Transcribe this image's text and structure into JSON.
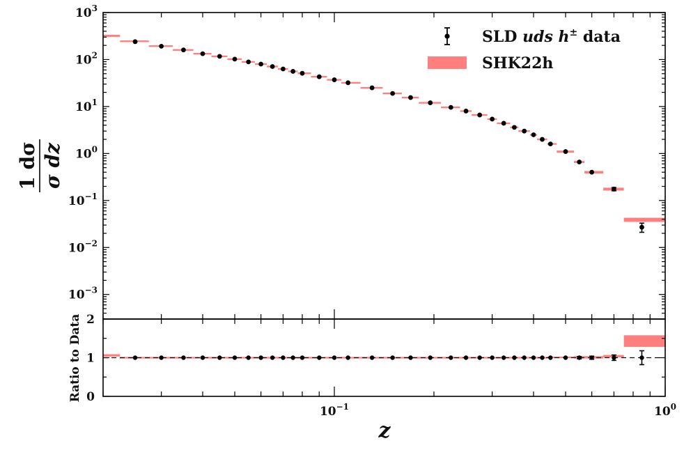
{
  "chart_data": [
    {
      "type": "scatter",
      "panel": "main",
      "ylabel_numerator": "1 dσ",
      "ylabel_denominator": "σ dz",
      "yscale": "log",
      "xscale": "log",
      "xlim": [
        0.02,
        1.0
      ],
      "ylim": [
        0.0003,
        1000
      ],
      "yticks": [
        {
          "base": "10",
          "exp": "3",
          "value": 1000
        },
        {
          "base": "10",
          "exp": "2",
          "value": 100
        },
        {
          "base": "10",
          "exp": "1",
          "value": 10
        },
        {
          "base": "10",
          "exp": "0",
          "value": 1
        },
        {
          "base": "10",
          "exp": "−1",
          "value": 0.1
        },
        {
          "base": "10",
          "exp": "−2",
          "value": 0.01
        },
        {
          "base": "10",
          "exp": "−3",
          "value": 0.001
        }
      ],
      "legend": {
        "placement": "top-right",
        "entries": [
          {
            "label_parts": [
              "SLD ",
              "uds",
              " h",
              "±",
              " data"
            ],
            "kind": "errorbar-point",
            "color": "#000000"
          },
          {
            "label": "SHK22h",
            "kind": "band",
            "color": "#ff7f7f"
          }
        ]
      },
      "series": [
        {
          "name": "SLD uds h± data",
          "x": [
            0.025,
            0.03,
            0.035,
            0.04,
            0.045,
            0.05,
            0.055,
            0.06,
            0.065,
            0.07,
            0.075,
            0.08,
            0.09,
            0.1,
            0.11,
            0.13,
            0.15,
            0.17,
            0.195,
            0.225,
            0.25,
            0.275,
            0.3,
            0.325,
            0.35,
            0.375,
            0.4,
            0.425,
            0.45,
            0.5,
            0.55,
            0.6,
            0.7,
            0.85
          ],
          "y": [
            240,
            192,
            160,
            133,
            117,
            102,
            89,
            80,
            71,
            63,
            56,
            51,
            43,
            37,
            32,
            25,
            19,
            15.5,
            12,
            9.6,
            8.0,
            6.6,
            5.4,
            4.4,
            3.6,
            3.0,
            2.5,
            2.0,
            1.6,
            1.1,
            0.66,
            0.4,
            0.175,
            0.027
          ],
          "yerr_rel": [
            0.03,
            0.02,
            0.02,
            0.02,
            0.02,
            0.02,
            0.02,
            0.02,
            0.02,
            0.02,
            0.02,
            0.02,
            0.02,
            0.02,
            0.02,
            0.02,
            0.02,
            0.02,
            0.02,
            0.02,
            0.02,
            0.02,
            0.02,
            0.02,
            0.02,
            0.02,
            0.02,
            0.02,
            0.03,
            0.03,
            0.04,
            0.05,
            0.08,
            0.22
          ]
        },
        {
          "name": "SHK22h",
          "x_lo": [
            0.02,
            0.0225,
            0.0275,
            0.0325,
            0.0375,
            0.0425,
            0.0475,
            0.0525,
            0.0575,
            0.0625,
            0.0675,
            0.0725,
            0.0775,
            0.085,
            0.095,
            0.105,
            0.12,
            0.14,
            0.16,
            0.18,
            0.21,
            0.24,
            0.26,
            0.29,
            0.31,
            0.34,
            0.36,
            0.39,
            0.41,
            0.44,
            0.47,
            0.53,
            0.57,
            0.65,
            0.75
          ],
          "x_hi": [
            0.0225,
            0.0275,
            0.0325,
            0.0375,
            0.0425,
            0.0475,
            0.0525,
            0.0575,
            0.0625,
            0.0675,
            0.0725,
            0.0775,
            0.085,
            0.095,
            0.105,
            0.12,
            0.14,
            0.16,
            0.18,
            0.21,
            0.24,
            0.26,
            0.29,
            0.31,
            0.34,
            0.36,
            0.39,
            0.41,
            0.44,
            0.47,
            0.53,
            0.57,
            0.65,
            0.75,
            1.0
          ],
          "y": [
            320,
            245,
            193,
            160,
            133,
            117,
            102,
            89,
            80,
            71,
            63,
            56,
            51,
            43,
            37,
            32,
            25,
            19,
            15.5,
            12,
            9.6,
            8.0,
            6.6,
            5.4,
            4.4,
            3.6,
            3.0,
            2.5,
            2.0,
            1.6,
            1.1,
            0.66,
            0.4,
            0.175,
            0.039
          ],
          "band_rel": [
            0.05,
            0.04,
            0.04,
            0.04,
            0.04,
            0.04,
            0.04,
            0.04,
            0.04,
            0.04,
            0.04,
            0.04,
            0.04,
            0.04,
            0.04,
            0.04,
            0.04,
            0.04,
            0.04,
            0.04,
            0.04,
            0.04,
            0.04,
            0.04,
            0.04,
            0.04,
            0.04,
            0.04,
            0.04,
            0.04,
            0.05,
            0.05,
            0.06,
            0.07,
            0.1
          ]
        }
      ]
    },
    {
      "type": "scatter",
      "panel": "ratio",
      "xlabel": "z",
      "ylabel": "Ratio to Data",
      "xscale": "log",
      "xlim": [
        0.02,
        1.0
      ],
      "ylim": [
        0,
        2
      ],
      "yticks": [
        "0",
        "1",
        "2"
      ],
      "xticks": [
        {
          "base": "10",
          "exp": "−1",
          "value": 0.1
        },
        {
          "base": "10",
          "exp": "0",
          "value": 1.0
        }
      ],
      "reference_line": 1,
      "series": [
        {
          "name": "SLD uds h± data",
          "x": [
            0.025,
            0.03,
            0.035,
            0.04,
            0.045,
            0.05,
            0.055,
            0.06,
            0.065,
            0.07,
            0.075,
            0.08,
            0.09,
            0.1,
            0.11,
            0.13,
            0.15,
            0.17,
            0.195,
            0.225,
            0.25,
            0.275,
            0.3,
            0.325,
            0.35,
            0.375,
            0.4,
            0.425,
            0.45,
            0.5,
            0.55,
            0.6,
            0.7,
            0.85
          ],
          "y": [
            1,
            1,
            1,
            1,
            1,
            1,
            1,
            1,
            1,
            1,
            1,
            1,
            1,
            1,
            1,
            1,
            1,
            1,
            1,
            1,
            1,
            1,
            1,
            1,
            1,
            1,
            1,
            1,
            1,
            1,
            1,
            1,
            1,
            1
          ],
          "yerr": [
            0.02,
            0.01,
            0.01,
            0.01,
            0.01,
            0.01,
            0.01,
            0.01,
            0.01,
            0.01,
            0.01,
            0.01,
            0.01,
            0.01,
            0.01,
            0.01,
            0.01,
            0.01,
            0.01,
            0.01,
            0.01,
            0.01,
            0.01,
            0.01,
            0.01,
            0.01,
            0.01,
            0.01,
            0.02,
            0.02,
            0.03,
            0.04,
            0.07,
            0.18
          ]
        },
        {
          "name": "SHK22h",
          "x_lo": [
            0.02,
            0.0225,
            0.12,
            0.44,
            0.53,
            0.65,
            0.75
          ],
          "x_hi": [
            0.0225,
            0.12,
            0.44,
            0.53,
            0.65,
            0.75,
            1.0
          ],
          "y": [
            1.06,
            1.0,
            1.0,
            1.01,
            1.01,
            1.04,
            1.43
          ],
          "band_half": [
            0.03,
            0.02,
            0.02,
            0.02,
            0.03,
            0.03,
            0.15
          ]
        }
      ]
    }
  ]
}
